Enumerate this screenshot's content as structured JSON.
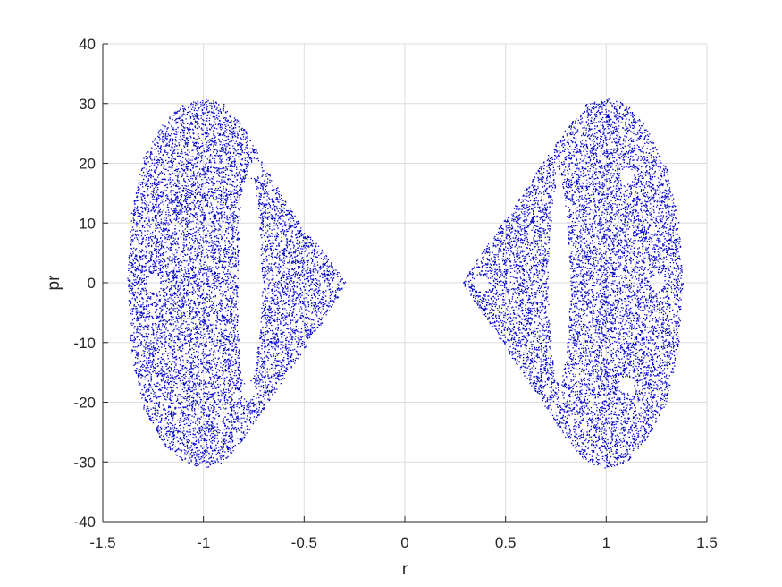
{
  "chart_data": {
    "type": "scatter",
    "title": "",
    "xlabel": "r",
    "ylabel": "pr",
    "xlim": [
      -1.5,
      1.5
    ],
    "ylim": [
      -40,
      40
    ],
    "xticks": [
      -1.5,
      -1,
      -0.5,
      0,
      0.5,
      1,
      1.5
    ],
    "xtick_labels": [
      "-1.5",
      "-1",
      "-0.5",
      "0",
      "0.5",
      "1",
      "1.5"
    ],
    "yticks": [
      -40,
      -30,
      -20,
      -10,
      0,
      10,
      20,
      30,
      40
    ],
    "ytick_labels": [
      "-40",
      "-30",
      "-20",
      "-10",
      "0",
      "10",
      "20",
      "30",
      "40"
    ],
    "grid": true,
    "legend": "none",
    "marker_color": "#0000cc",
    "series": [
      {
        "region": "left",
        "outer_boundary": [
          [
            -1.0,
            31
          ],
          [
            -0.9,
            30
          ],
          [
            -0.8,
            26
          ],
          [
            -0.7,
            20
          ],
          [
            -0.6,
            14
          ],
          [
            -0.5,
            9
          ],
          [
            -0.4,
            5
          ],
          [
            -0.29,
            0
          ],
          [
            -0.4,
            -6
          ],
          [
            -0.5,
            -11
          ],
          [
            -0.6,
            -16
          ],
          [
            -0.7,
            -21
          ],
          [
            -0.8,
            -26
          ],
          [
            -0.9,
            -30
          ],
          [
            -1.0,
            -31
          ],
          [
            -1.1,
            -30
          ],
          [
            -1.2,
            -27
          ],
          [
            -1.3,
            -21
          ],
          [
            -1.36,
            -12
          ],
          [
            -1.38,
            0
          ],
          [
            -1.36,
            12
          ],
          [
            -1.3,
            21
          ],
          [
            -1.2,
            27
          ],
          [
            -1.1,
            30
          ]
        ],
        "inner_hole": [
          [
            -0.78,
            19
          ],
          [
            -0.74,
            15
          ],
          [
            -0.72,
            8
          ],
          [
            -0.71,
            0
          ],
          [
            -0.72,
            -8
          ],
          [
            -0.75,
            -15
          ],
          [
            -0.79,
            -18
          ],
          [
            -0.82,
            -14
          ],
          [
            -0.83,
            -6
          ],
          [
            -0.83,
            2
          ],
          [
            -0.82,
            10
          ],
          [
            -0.81,
            16
          ]
        ],
        "islands": [
          [
            -1.25,
            0
          ],
          [
            -0.75,
            19
          ],
          [
            -0.78,
            -18
          ]
        ]
      },
      {
        "region": "right",
        "outer_boundary": [
          [
            1.0,
            31
          ],
          [
            1.1,
            30
          ],
          [
            1.2,
            26
          ],
          [
            1.3,
            19
          ],
          [
            1.36,
            10
          ],
          [
            1.38,
            0
          ],
          [
            1.36,
            -10
          ],
          [
            1.3,
            -20
          ],
          [
            1.2,
            -26
          ],
          [
            1.1,
            -30
          ],
          [
            1.0,
            -31
          ],
          [
            0.9,
            -30
          ],
          [
            0.8,
            -26
          ],
          [
            0.7,
            -21
          ],
          [
            0.6,
            -16
          ],
          [
            0.5,
            -11
          ],
          [
            0.4,
            -6
          ],
          [
            0.28,
            0
          ],
          [
            0.4,
            6
          ],
          [
            0.5,
            11
          ],
          [
            0.6,
            16
          ],
          [
            0.7,
            21
          ],
          [
            0.8,
            26
          ],
          [
            0.9,
            30
          ]
        ],
        "inner_hole": [
          [
            0.76,
            19
          ],
          [
            0.79,
            15
          ],
          [
            0.81,
            8
          ],
          [
            0.82,
            0
          ],
          [
            0.81,
            -8
          ],
          [
            0.79,
            -14
          ],
          [
            0.77,
            -18
          ],
          [
            0.74,
            -15
          ],
          [
            0.72,
            -8
          ],
          [
            0.71,
            0
          ],
          [
            0.72,
            8
          ],
          [
            0.74,
            15
          ]
        ],
        "islands": [
          [
            0.38,
            0
          ],
          [
            1.1,
            18
          ],
          [
            1.1,
            -17
          ],
          [
            1.25,
            0
          ]
        ]
      }
    ]
  }
}
